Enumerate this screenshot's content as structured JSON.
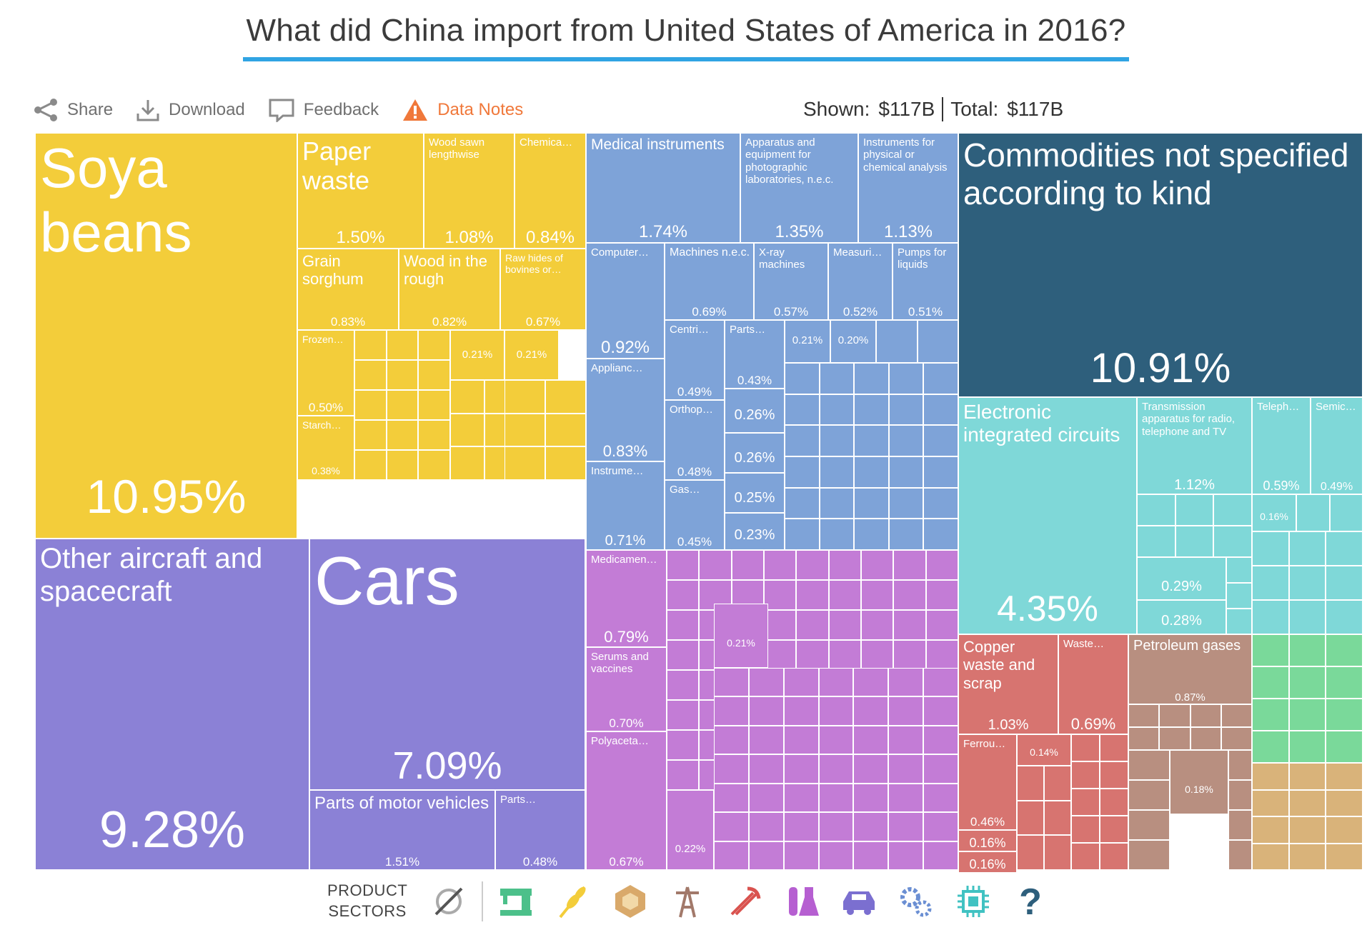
{
  "title": "What did China import from United States of America in 2016?",
  "toolbar": {
    "share": "Share",
    "download": "Download",
    "feedback": "Feedback",
    "data_notes": "Data Notes"
  },
  "totals": {
    "shown_label": "Shown:",
    "shown_value": "$117B",
    "total_label": "Total:",
    "total_value": "$117B"
  },
  "colors": {
    "vegetable": "#f3cd3a",
    "transport": "#8b81d6",
    "instruments": "#7ea3d8",
    "chemicals": "#c37cd6",
    "other": "#2e5f7c",
    "electronics": "#7fd8d8",
    "metals": "#d77470",
    "minerals": "#b88f80",
    "textiles": "#7ad99a",
    "stone": "#d9b37a",
    "accent": "#30a4e3",
    "warning": "#f0783a"
  },
  "chart_data": {
    "type": "treemap",
    "title": "What did China import from United States of America in 2016?",
    "total": "$117B",
    "shown": "$117B",
    "items": [
      {
        "name": "Soya beans",
        "share": 10.95,
        "label": "10.95%",
        "sector": "vegetable"
      },
      {
        "name": "Paper waste",
        "share": 1.5,
        "label": "1.50%",
        "sector": "vegetable"
      },
      {
        "name": "Wood sawn lengthwise",
        "share": 1.08,
        "label": "1.08%",
        "sector": "vegetable"
      },
      {
        "name": "Chemica…",
        "share": 0.84,
        "label": "0.84%",
        "sector": "vegetable"
      },
      {
        "name": "Grain sorghum",
        "share": 0.83,
        "label": "0.83%",
        "sector": "vegetable"
      },
      {
        "name": "Wood in the rough",
        "share": 0.82,
        "label": "0.82%",
        "sector": "vegetable"
      },
      {
        "name": "Raw hides of bovines or…",
        "share": 0.67,
        "label": "0.67%",
        "sector": "vegetable"
      },
      {
        "name": "Frozen…",
        "share": 0.5,
        "label": "0.50%",
        "sector": "vegetable"
      },
      {
        "name": "Starch…",
        "share": 0.38,
        "label": "0.38%",
        "sector": "vegetable"
      },
      {
        "name": "",
        "share": 0.21,
        "label": "0.21%",
        "sector": "vegetable"
      },
      {
        "name": "",
        "share": 0.21,
        "label": "0.21%",
        "sector": "vegetable"
      },
      {
        "name": "Other aircraft and spacecraft",
        "share": 9.28,
        "label": "9.28%",
        "sector": "transport"
      },
      {
        "name": "Cars",
        "share": 7.09,
        "label": "7.09%",
        "sector": "transport"
      },
      {
        "name": "Parts of motor vehicles",
        "share": 1.51,
        "label": "1.51%",
        "sector": "transport"
      },
      {
        "name": "Parts…",
        "share": 0.48,
        "label": "0.48%",
        "sector": "transport"
      },
      {
        "name": "Medical instruments",
        "share": 1.74,
        "label": "1.74%",
        "sector": "instruments"
      },
      {
        "name": "Apparatus and equipment for photographic laboratories, n.e.c.",
        "share": 1.35,
        "label": "1.35%",
        "sector": "instruments"
      },
      {
        "name": "Instruments for physical or chemical analysis",
        "share": 1.13,
        "label": "1.13%",
        "sector": "instruments"
      },
      {
        "name": "Computer…",
        "share": 0.92,
        "label": "0.92%",
        "sector": "instruments"
      },
      {
        "name": "Machines n.e.c.",
        "share": 0.69,
        "label": "0.69%",
        "sector": "instruments"
      },
      {
        "name": "X-ray machines",
        "share": 0.57,
        "label": "0.57%",
        "sector": "instruments"
      },
      {
        "name": "Measuri…",
        "share": 0.52,
        "label": "0.52%",
        "sector": "instruments"
      },
      {
        "name": "Pumps for liquids",
        "share": 0.51,
        "label": "0.51%",
        "sector": "instruments"
      },
      {
        "name": "Applianc…",
        "share": 0.83,
        "label": "0.83%",
        "sector": "instruments"
      },
      {
        "name": "Instrume…",
        "share": 0.71,
        "label": "0.71%",
        "sector": "instruments"
      },
      {
        "name": "Centri…",
        "share": 0.49,
        "label": "0.49%",
        "sector": "instruments"
      },
      {
        "name": "Orthop…",
        "share": 0.48,
        "label": "0.48%",
        "sector": "instruments"
      },
      {
        "name": "Gas…",
        "share": 0.45,
        "label": "0.45%",
        "sector": "instruments"
      },
      {
        "name": "Parts…",
        "share": 0.43,
        "label": "0.43%",
        "sector": "instruments"
      },
      {
        "name": "",
        "share": 0.26,
        "label": "0.26%",
        "sector": "instruments"
      },
      {
        "name": "",
        "share": 0.26,
        "label": "0.26%",
        "sector": "instruments"
      },
      {
        "name": "",
        "share": 0.25,
        "label": "0.25%",
        "sector": "instruments"
      },
      {
        "name": "",
        "share": 0.23,
        "label": "0.23%",
        "sector": "instruments"
      },
      {
        "name": "",
        "share": 0.21,
        "label": "0.21%",
        "sector": "instruments"
      },
      {
        "name": "",
        "share": 0.2,
        "label": "0.20%",
        "sector": "instruments"
      },
      {
        "name": "Commodities not specified according to kind",
        "share": 10.91,
        "label": "10.91%",
        "sector": "other"
      },
      {
        "name": "Medicamen…",
        "share": 0.79,
        "label": "0.79%",
        "sector": "chemicals"
      },
      {
        "name": "Serums and vaccines",
        "share": 0.7,
        "label": "0.70%",
        "sector": "chemicals"
      },
      {
        "name": "Polyaceta…",
        "share": 0.67,
        "label": "0.67%",
        "sector": "chemicals"
      },
      {
        "name": "",
        "share": 0.22,
        "label": "0.22%",
        "sector": "chemicals"
      },
      {
        "name": "",
        "share": 0.21,
        "label": "0.21%",
        "sector": "chemicals"
      },
      {
        "name": "Electronic integrated circuits",
        "share": 4.35,
        "label": "4.35%",
        "sector": "electronics"
      },
      {
        "name": "Transmission apparatus for radio, telephone and TV",
        "share": 1.12,
        "label": "1.12%",
        "sector": "electronics"
      },
      {
        "name": "Teleph…",
        "share": 0.59,
        "label": "0.59%",
        "sector": "electronics"
      },
      {
        "name": "Semic…",
        "share": 0.49,
        "label": "0.49%",
        "sector": "electronics"
      },
      {
        "name": "",
        "share": 0.29,
        "label": "0.29%",
        "sector": "electronics"
      },
      {
        "name": "",
        "share": 0.28,
        "label": "0.28%",
        "sector": "electronics"
      },
      {
        "name": "",
        "share": 0.16,
        "label": "0.16%",
        "sector": "electronics"
      },
      {
        "name": "Copper waste and scrap",
        "share": 1.03,
        "label": "1.03%",
        "sector": "metals"
      },
      {
        "name": "Waste…",
        "share": 0.69,
        "label": "0.69%",
        "sector": "metals"
      },
      {
        "name": "Ferrou…",
        "share": 0.46,
        "label": "0.46%",
        "sector": "metals"
      },
      {
        "name": "",
        "share": 0.16,
        "label": "0.16%",
        "sector": "metals"
      },
      {
        "name": "",
        "share": 0.16,
        "label": "0.16%",
        "sector": "metals"
      },
      {
        "name": "",
        "share": 0.14,
        "label": "0.14%",
        "sector": "metals"
      },
      {
        "name": "Petroleum gases",
        "share": 0.87,
        "label": "0.87%",
        "sector": "minerals"
      },
      {
        "name": "",
        "share": 0.18,
        "label": "0.18%",
        "sector": "minerals"
      }
    ]
  },
  "sectors_label": "PRODUCT\nSECTORS",
  "sectors": [
    {
      "name": "all-sectors-icon"
    },
    {
      "name": "textiles-icon",
      "color": "#4cc08a"
    },
    {
      "name": "vegetable-products-icon",
      "color": "#f3cd3a"
    },
    {
      "name": "stone-icon",
      "color": "#d9a96a"
    },
    {
      "name": "minerals-icon",
      "color": "#a2796a"
    },
    {
      "name": "metals-icon",
      "color": "#d9534f"
    },
    {
      "name": "chemicals-icon",
      "color": "#b65fd1"
    },
    {
      "name": "transportation-icon",
      "color": "#7b6fd0"
    },
    {
      "name": "machines-icon",
      "color": "#6b8fd3"
    },
    {
      "name": "electronics-icon",
      "color": "#40c2c2"
    },
    {
      "name": "unknown-icon",
      "color": "#2e5f7c"
    }
  ]
}
